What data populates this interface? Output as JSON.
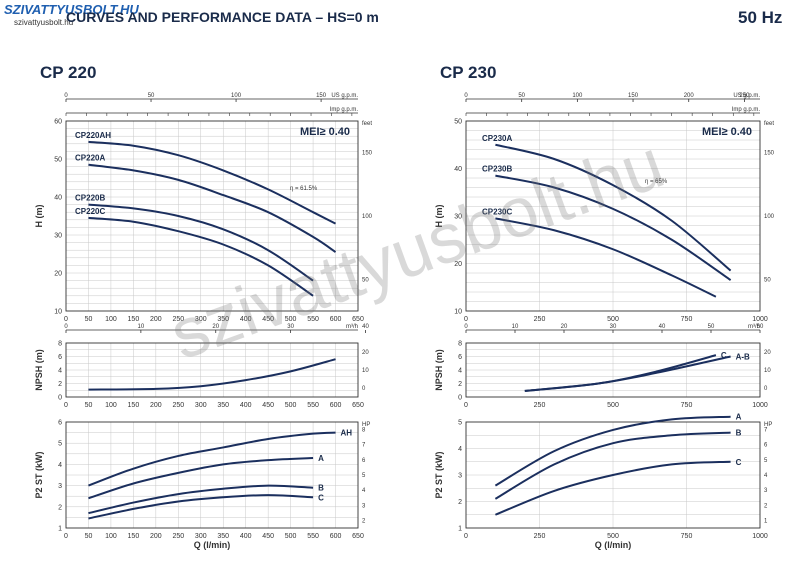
{
  "header": {
    "brand": "SZIVATTYUSBOLT.HU",
    "brand_sub": "szivattyusbolt.hu",
    "title": "CURVES AND PERFORMANCE DATA  –  HS=0 m",
    "frequency": "50 Hz"
  },
  "watermark": "szivattyusbolt.hu",
  "colors": {
    "curve": "#1b2f5e",
    "grid": "#c8c8c8",
    "axis": "#333333"
  },
  "chart_data": [
    {
      "type": "line",
      "title": "CP 220",
      "mei": "MEI≥ 0.40",
      "efficiency_label": "η = 61.5%",
      "xlabel": "Q (l/min)",
      "xlim": [
        0,
        650
      ],
      "x_ticks": [
        0,
        50,
        100,
        150,
        200,
        250,
        300,
        350,
        400,
        450,
        500,
        550,
        600,
        650
      ],
      "top_axes": [
        {
          "unit": "US g.p.m.",
          "ticks": [
            "0",
            "50",
            "100",
            "150"
          ]
        },
        {
          "unit": "Imp g.p.m.",
          "ticks": []
        },
        {
          "unit": "m³/h",
          "ticks": [
            "0",
            "10",
            "20",
            "30",
            "40"
          ]
        }
      ],
      "head": {
        "ylabel": "H (m)",
        "ylim": [
          10,
          60
        ],
        "ticks": [
          10,
          20,
          30,
          40,
          50,
          60
        ],
        "right_unit": "feet",
        "right_ticks": [
          "50",
          "100",
          "150"
        ],
        "series": [
          {
            "name": "CP220AH",
            "x": [
              50,
              150,
              250,
              350,
              450,
              550,
              600
            ],
            "y": [
              54.5,
              53.5,
              51,
              47,
              42,
              36,
              33
            ]
          },
          {
            "name": "CP220A",
            "x": [
              50,
              150,
              250,
              350,
              450,
              550,
              600
            ],
            "y": [
              48.5,
              47,
              44.5,
              40.5,
              36,
              29.5,
              25.5
            ]
          },
          {
            "name": "CP220B",
            "x": [
              50,
              150,
              250,
              350,
              450,
              550
            ],
            "y": [
              38,
              37,
              35,
              31.5,
              26,
              18
            ]
          },
          {
            "name": "CP220C",
            "x": [
              50,
              150,
              250,
              350,
              450,
              550
            ],
            "y": [
              34.5,
              33.5,
              31,
              27.5,
              22,
              14
            ]
          }
        ]
      },
      "npsh": {
        "ylabel": "NPSH (m)",
        "ylim": [
          0,
          8
        ],
        "ticks": [
          0,
          2,
          4,
          6,
          8
        ],
        "right_ticks": [
          "0",
          "10",
          "20"
        ],
        "series": [
          {
            "name": "",
            "x": [
              50,
              200,
              300,
              400,
              500,
              600
            ],
            "y": [
              1.1,
              1.2,
              1.6,
              2.5,
              3.8,
              5.6
            ]
          }
        ]
      },
      "power": {
        "ylabel": "P2 ST (kW)",
        "ylim": [
          1,
          6
        ],
        "ticks": [
          1,
          2,
          3,
          4,
          5,
          6
        ],
        "right_unit": "HP",
        "right_ticks": [
          "2",
          "3",
          "4",
          "5",
          "6",
          "7",
          "8"
        ],
        "series": [
          {
            "name": "AH",
            "x": [
              50,
              150,
              250,
              350,
              450,
              550,
              600
            ],
            "y": [
              3.0,
              3.8,
              4.4,
              4.8,
              5.2,
              5.45,
              5.5
            ]
          },
          {
            "name": "A",
            "x": [
              50,
              150,
              250,
              350,
              450,
              550
            ],
            "y": [
              2.4,
              3.1,
              3.6,
              4.0,
              4.2,
              4.3
            ]
          },
          {
            "name": "B",
            "x": [
              50,
              150,
              250,
              350,
              450,
              550
            ],
            "y": [
              1.7,
              2.2,
              2.6,
              2.85,
              3.0,
              2.9
            ]
          },
          {
            "name": "C",
            "x": [
              50,
              150,
              250,
              350,
              450,
              550
            ],
            "y": [
              1.45,
              1.9,
              2.25,
              2.45,
              2.55,
              2.45
            ]
          }
        ]
      }
    },
    {
      "type": "line",
      "title": "CP 230",
      "mei": "MEI≥ 0.40",
      "efficiency_label": "η = 65%",
      "xlabel": "Q (l/min)",
      "xlim": [
        0,
        1000
      ],
      "x_ticks": [
        0,
        250,
        500,
        750,
        1000
      ],
      "top_axes": [
        {
          "unit": "US g.p.m.",
          "ticks": [
            "0",
            "50",
            "100",
            "150",
            "200",
            "250"
          ]
        },
        {
          "unit": "Imp g.p.m.",
          "ticks": []
        },
        {
          "unit": "m³/h",
          "ticks": [
            "0",
            "10",
            "20",
            "30",
            "40",
            "50",
            "60"
          ]
        }
      ],
      "head": {
        "ylabel": "H (m)",
        "ylim": [
          10,
          50
        ],
        "ticks": [
          10,
          20,
          30,
          40,
          50
        ],
        "right_unit": "feet",
        "right_ticks": [
          "50",
          "100",
          "150"
        ],
        "series": [
          {
            "name": "CP230A",
            "x": [
              100,
              300,
              500,
              700,
              900
            ],
            "y": [
              45,
              42,
              36.5,
              29,
              18.5
            ]
          },
          {
            "name": "CP230B",
            "x": [
              100,
              300,
              500,
              700,
              900
            ],
            "y": [
              38.5,
              36,
              31.5,
              25,
              16.5
            ]
          },
          {
            "name": "CP230C",
            "x": [
              100,
              300,
              500,
              700,
              850
            ],
            "y": [
              29.5,
              27,
              23,
              17.5,
              13
            ]
          }
        ]
      },
      "npsh": {
        "ylabel": "NPSH (m)",
        "ylim": [
          0,
          8
        ],
        "ticks": [
          0,
          2,
          4,
          6,
          8
        ],
        "right_ticks": [
          "0",
          "10",
          "20"
        ],
        "series": [
          {
            "name": "C",
            "x": [
              200,
              450,
              650,
              850
            ],
            "y": [
              0.9,
              2.0,
              3.8,
              6.2
            ]
          },
          {
            "name": "A-B",
            "x": [
              200,
              450,
              650,
              900
            ],
            "y": [
              0.9,
              2.0,
              3.6,
              6.0
            ]
          }
        ]
      },
      "power": {
        "ylabel": "P2 ST (kW)",
        "ylim": [
          1,
          5
        ],
        "ticks": [
          1,
          2,
          3,
          4,
          5
        ],
        "right_unit": "HP",
        "right_ticks": [
          "1",
          "2",
          "3",
          "4",
          "5",
          "6",
          "7"
        ],
        "series": [
          {
            "name": "A",
            "x": [
              100,
              300,
              500,
              700,
              900
            ],
            "y": [
              2.6,
              3.9,
              4.7,
              5.1,
              5.2
            ]
          },
          {
            "name": "B",
            "x": [
              100,
              300,
              500,
              700,
              900
            ],
            "y": [
              2.1,
              3.4,
              4.2,
              4.5,
              4.6
            ]
          },
          {
            "name": "C",
            "x": [
              100,
              300,
              500,
              700,
              900
            ],
            "y": [
              1.5,
              2.4,
              3.0,
              3.4,
              3.5
            ]
          }
        ]
      }
    }
  ]
}
